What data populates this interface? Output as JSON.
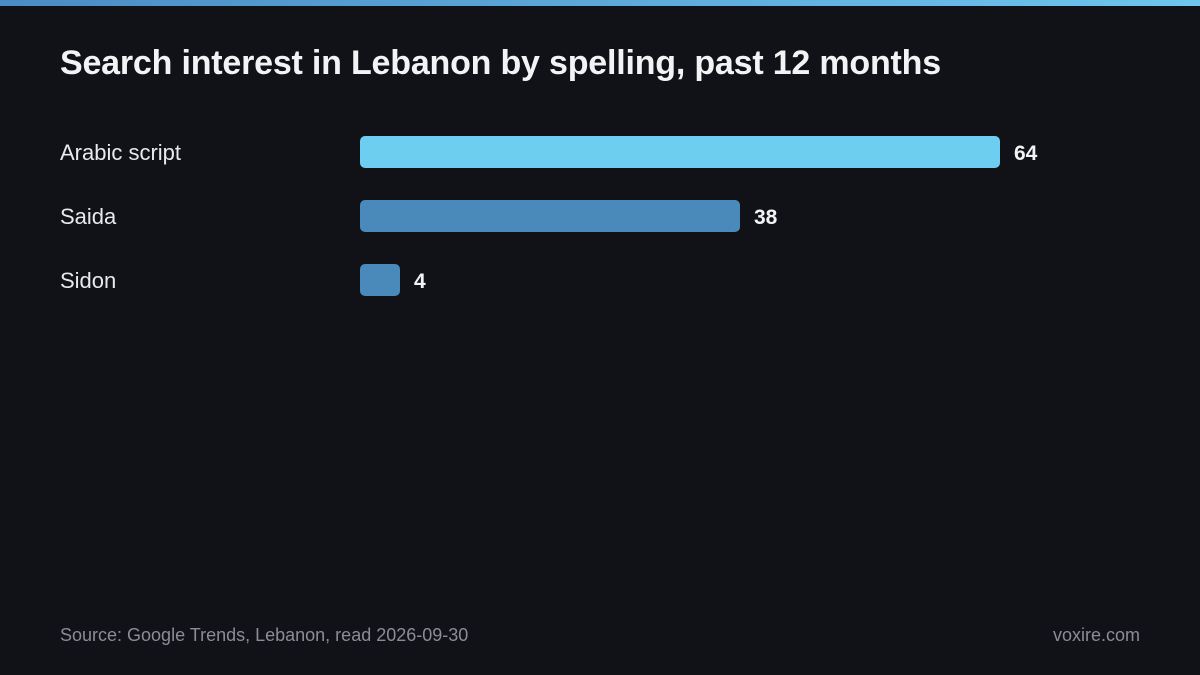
{
  "chart_data": {
    "type": "bar",
    "orientation": "horizontal",
    "title": "Search interest in Lebanon by spelling, past 12 months",
    "categories": [
      "Arabic script",
      "Saida",
      "Sidon"
    ],
    "values": [
      64,
      38,
      4
    ],
    "value_labels": [
      "64",
      "38",
      "4"
    ],
    "xlim": [
      0,
      64
    ],
    "grid": false,
    "colors": [
      "#6ecef0",
      "#4a8aba",
      "#4a8aba"
    ]
  },
  "footer": {
    "source": "Source: Google Trends, Lebanon, read 2026-09-30",
    "brand": "voxire.com"
  }
}
